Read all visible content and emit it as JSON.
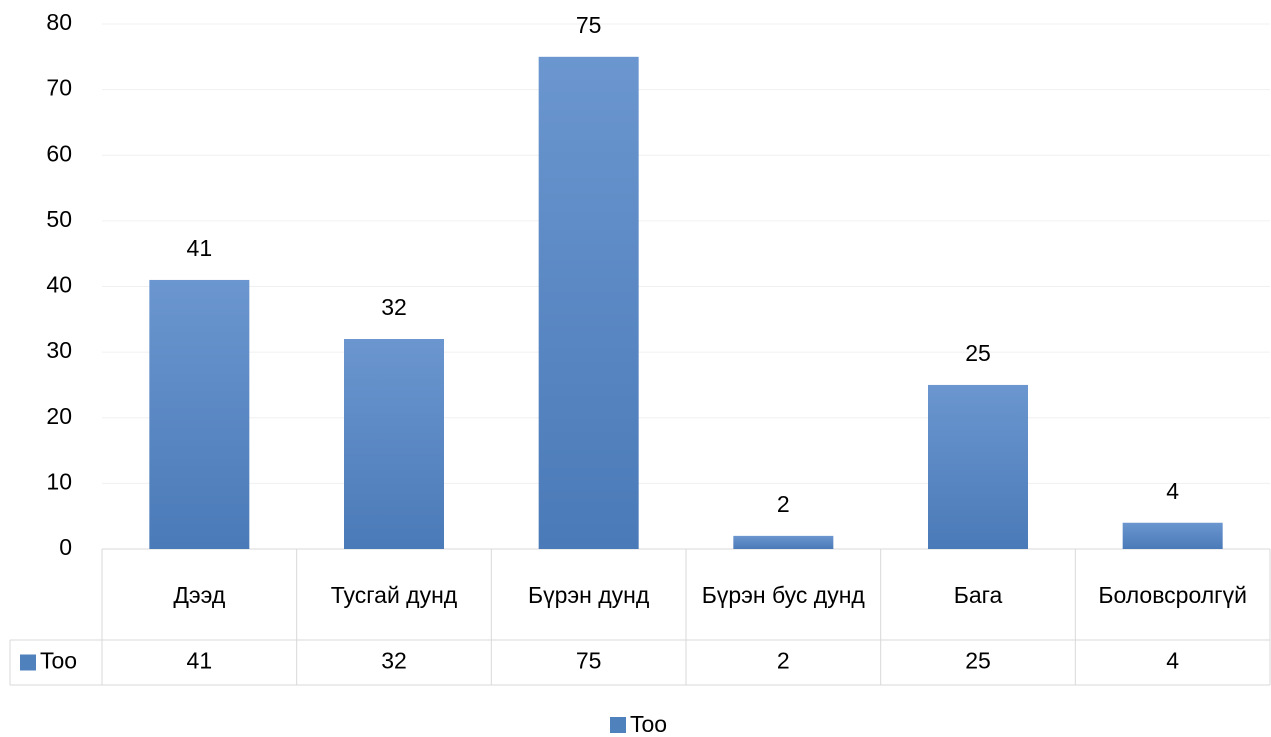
{
  "chart_data": {
    "type": "bar",
    "categories": [
      "Дээд",
      "Тусгай дунд",
      "Бүрэн дунд",
      "Бүрэн бус дунд",
      "Бага",
      "Боловсролгүй"
    ],
    "series": [
      {
        "name": "Too",
        "color": "#4f81bd",
        "values": [
          41,
          32,
          75,
          2,
          25,
          4
        ]
      }
    ],
    "ylim": [
      0,
      80
    ],
    "yticks": [
      0,
      10,
      20,
      30,
      40,
      50,
      60,
      70,
      80
    ],
    "grid": true,
    "legend": "bottom",
    "data_table": true
  }
}
